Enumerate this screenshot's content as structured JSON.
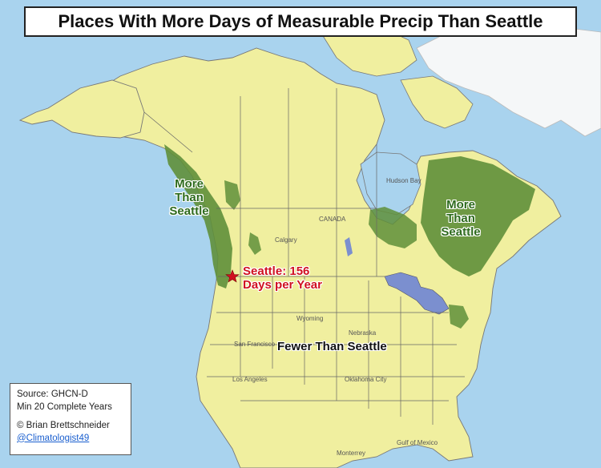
{
  "title": "Places With More Days of Measurable Precip Than Seattle",
  "labels": {
    "more_west": [
      "More",
      "Than",
      "Seattle"
    ],
    "more_east": [
      "More",
      "Than",
      "Seattle"
    ],
    "seattle_line1": "Seattle: 156",
    "seattle_line2": "Days per Year",
    "fewer": "Fewer Than Seattle"
  },
  "info": {
    "source": "Source: GHCN-D",
    "min_years": "Min 20 Complete Years",
    "credit": "© Brian Brettschneider",
    "handle": "@Climatologist49"
  },
  "basemap_labels": {
    "canada": "CANADA",
    "hudson_bay": "Hudson Bay",
    "gulf": "Gulf of Mexico",
    "calgary": "Calgary",
    "wyoming": "Wyoming",
    "nebraska": "Nebraska",
    "san_francisco": "San Francisco",
    "los_angeles": "Los Angeles",
    "oklahoma_city": "Oklahoma City",
    "monterrey": "Monterrey"
  },
  "colors": {
    "ocean": "#a9d3ee",
    "land": "#f0ef9f",
    "more_than": "#5f8f3a",
    "seattle_marker": "#d01020",
    "lakes": "#7b8fcf",
    "greenland": "#f5f7f8"
  },
  "marker": {
    "seattle_icon": "star-icon"
  }
}
